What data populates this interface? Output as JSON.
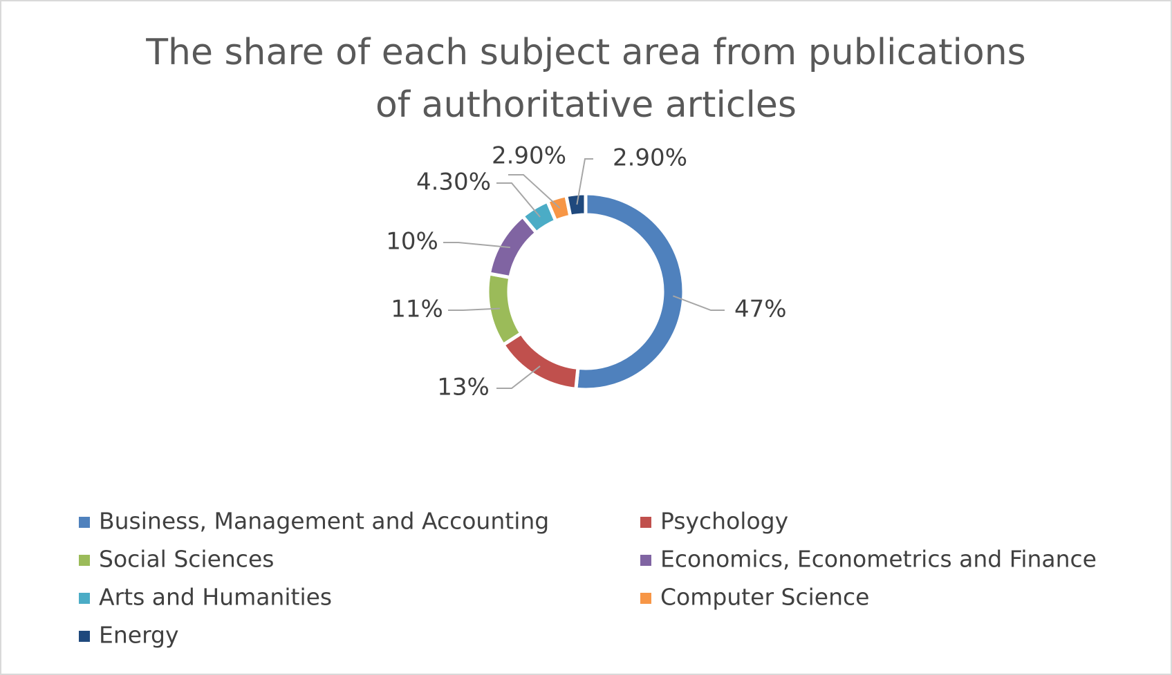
{
  "chart_data": {
    "type": "donut",
    "title": "The share of each subject area from publications of authoritative articles",
    "categories": [
      "Business, Management and Accounting",
      "Psychology",
      "Social Sciences",
      "Economics, Econometrics and Finance",
      "Arts and Humanities",
      "Computer Science",
      "Energy"
    ],
    "values": [
      47,
      13,
      11,
      10,
      4.3,
      2.9,
      2.9
    ],
    "value_labels": [
      "47%",
      "13%",
      "11%",
      "10%",
      "4.30%",
      "2.90%",
      "2.90%"
    ],
    "colors": [
      "#4f81bd",
      "#c0504d",
      "#9bbb59",
      "#8064a2",
      "#4bacc6",
      "#f79646",
      "#1f497d"
    ],
    "legend": "bottom"
  }
}
